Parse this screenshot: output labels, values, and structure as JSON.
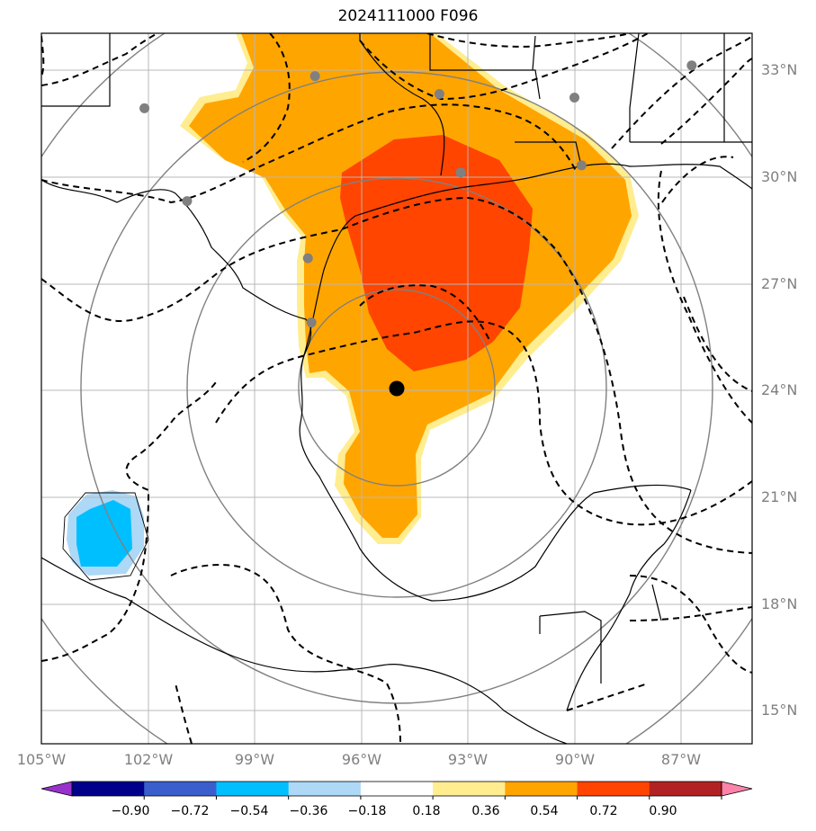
{
  "title": "2024111000 F096",
  "map": {
    "lat_labels": [
      {
        "lat": 33,
        "text": "33°N"
      },
      {
        "lat": 30,
        "text": "30°N"
      },
      {
        "lat": 27,
        "text": "27°N"
      },
      {
        "lat": 24,
        "text": "24°N"
      },
      {
        "lat": 21,
        "text": "21°N"
      },
      {
        "lat": 18,
        "text": "18°N"
      },
      {
        "lat": 15,
        "text": "15°N"
      }
    ],
    "lon_labels": [
      {
        "lon": -105,
        "text": "105°W"
      },
      {
        "lon": -102,
        "text": "102°W"
      },
      {
        "lon": -99,
        "text": "99°W"
      },
      {
        "lon": -96,
        "text": "96°W"
      },
      {
        "lon": -93,
        "text": "93°W"
      },
      {
        "lon": -90,
        "text": "90°W"
      },
      {
        "lon": -87,
        "text": "87°W"
      }
    ],
    "extent": {
      "lon_min": -105,
      "lon_max": -85,
      "lat_min": 14.1,
      "lat_max": 34
    },
    "center_marker": {
      "lon": -95.0,
      "lat": 24.05
    },
    "station_markers": [
      {
        "lon": -97.3,
        "lat": 32.8
      },
      {
        "lon": -93.8,
        "lat": 32.3
      },
      {
        "lon": -90.0,
        "lat": 32.2
      },
      {
        "lon": -86.7,
        "lat": 33.1
      },
      {
        "lon": -102.1,
        "lat": 31.9
      },
      {
        "lon": -100.9,
        "lat": 29.3
      },
      {
        "lon": -93.2,
        "lat": 30.1
      },
      {
        "lon": -89.8,
        "lat": 30.3
      },
      {
        "lon": -97.5,
        "lat": 27.7
      },
      {
        "lon": -97.4,
        "lat": 25.9
      }
    ]
  },
  "colorbar": {
    "colors": [
      "#9932cc",
      "#00008b",
      "#3a5fcd",
      "#00bfff",
      "#add8f6",
      "#ffffff",
      "#ffed8f",
      "#ffa500",
      "#ff4500",
      "#b22222",
      "#ff82ab"
    ],
    "ticks": [
      "−0.90",
      "−0.72",
      "−0.54",
      "−0.36",
      "−0.18",
      "0.18",
      "0.36",
      "0.54",
      "0.72",
      "0.90"
    ]
  }
}
